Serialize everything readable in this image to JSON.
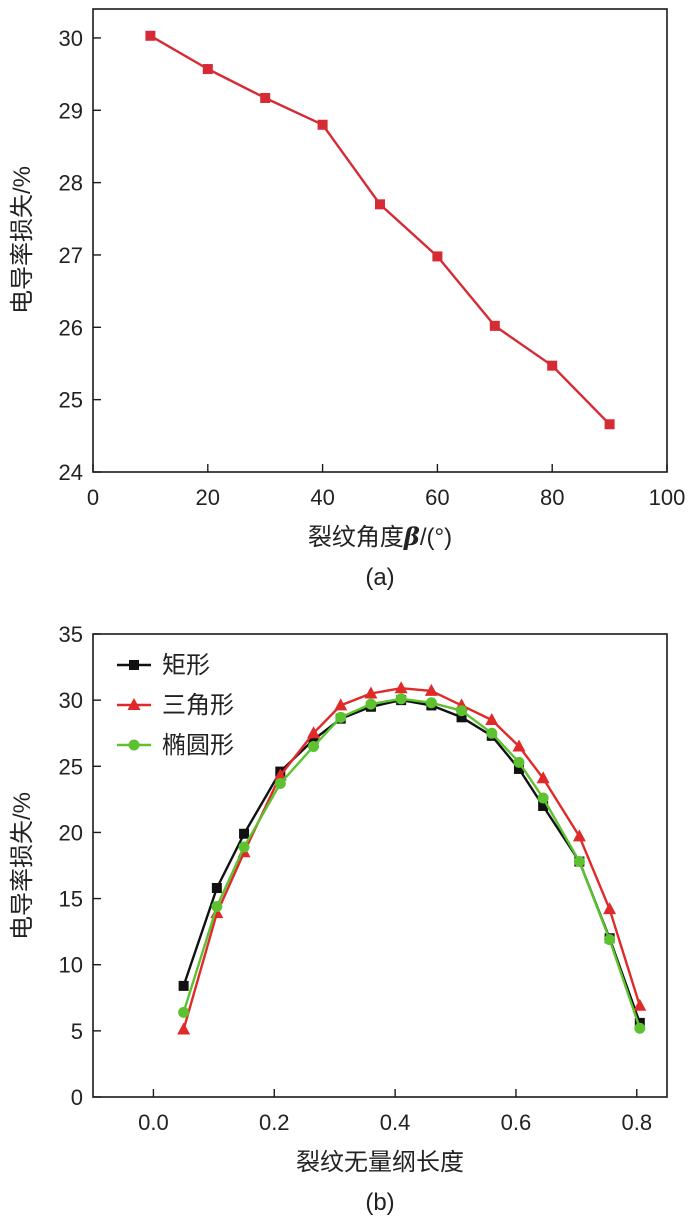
{
  "chart_data": [
    {
      "type": "line",
      "caption": "(a)",
      "xlabel": "裂纹角度",
      "xlabel_symbol": "β",
      "xlabel_unit": "/(°)",
      "ylabel": "电导率损失/%",
      "xlim": [
        0,
        100
      ],
      "ylim": [
        24,
        30.4
      ],
      "xticks": [
        0,
        20,
        40,
        60,
        80,
        100
      ],
      "yticks": [
        24,
        25,
        26,
        27,
        28,
        29,
        30
      ],
      "series": [
        {
          "color": "#d62a34",
          "marker": "square",
          "x": [
            10,
            20,
            30,
            40,
            50,
            60,
            70,
            80,
            90
          ],
          "y": [
            30.03,
            29.57,
            29.17,
            28.8,
            27.7,
            26.98,
            26.02,
            25.47,
            24.66
          ]
        }
      ]
    },
    {
      "type": "line",
      "caption": "(b)",
      "xlabel": "裂纹无量纲长度",
      "ylabel": "电导率损失/%",
      "xlim": [
        -0.1,
        0.85
      ],
      "ylim": [
        0,
        35
      ],
      "xticks": [
        0.0,
        0.2,
        0.4,
        0.6,
        0.8
      ],
      "xtick_labels": [
        "0.0",
        "0.2",
        "0.4",
        "0.6",
        "0.8"
      ],
      "yticks": [
        0,
        5,
        10,
        15,
        20,
        25,
        30,
        35
      ],
      "legend_position": "top-left",
      "series": [
        {
          "name": "矩形",
          "color": "#111111",
          "marker": "square",
          "x": [
            0.05,
            0.105,
            0.15,
            0.21,
            0.265,
            0.31,
            0.36,
            0.41,
            0.46,
            0.51,
            0.56,
            0.605,
            0.645,
            0.705,
            0.755,
            0.805
          ],
          "y": [
            8.4,
            15.8,
            19.9,
            24.6,
            27.0,
            28.6,
            29.5,
            30.0,
            29.6,
            28.7,
            27.3,
            24.8,
            22.0,
            17.8,
            12.0,
            5.6
          ]
        },
        {
          "name": "三角形",
          "color": "#e02a2a",
          "marker": "triangle",
          "x": [
            0.05,
            0.105,
            0.15,
            0.21,
            0.265,
            0.31,
            0.36,
            0.41,
            0.46,
            0.51,
            0.56,
            0.605,
            0.645,
            0.705,
            0.755,
            0.805
          ],
          "y": [
            5.1,
            13.9,
            18.5,
            24.3,
            27.5,
            29.6,
            30.5,
            30.9,
            30.7,
            29.6,
            28.5,
            26.5,
            24.1,
            19.7,
            14.2,
            6.9
          ]
        },
        {
          "name": "椭圆形",
          "color": "#5cc230",
          "marker": "circle",
          "x": [
            0.05,
            0.105,
            0.15,
            0.21,
            0.265,
            0.31,
            0.36,
            0.41,
            0.46,
            0.51,
            0.56,
            0.605,
            0.645,
            0.705,
            0.755,
            0.805
          ],
          "y": [
            6.4,
            14.4,
            18.9,
            23.7,
            26.5,
            28.7,
            29.7,
            30.1,
            29.8,
            29.2,
            27.5,
            25.3,
            22.6,
            17.8,
            11.9,
            5.2
          ]
        }
      ]
    }
  ]
}
